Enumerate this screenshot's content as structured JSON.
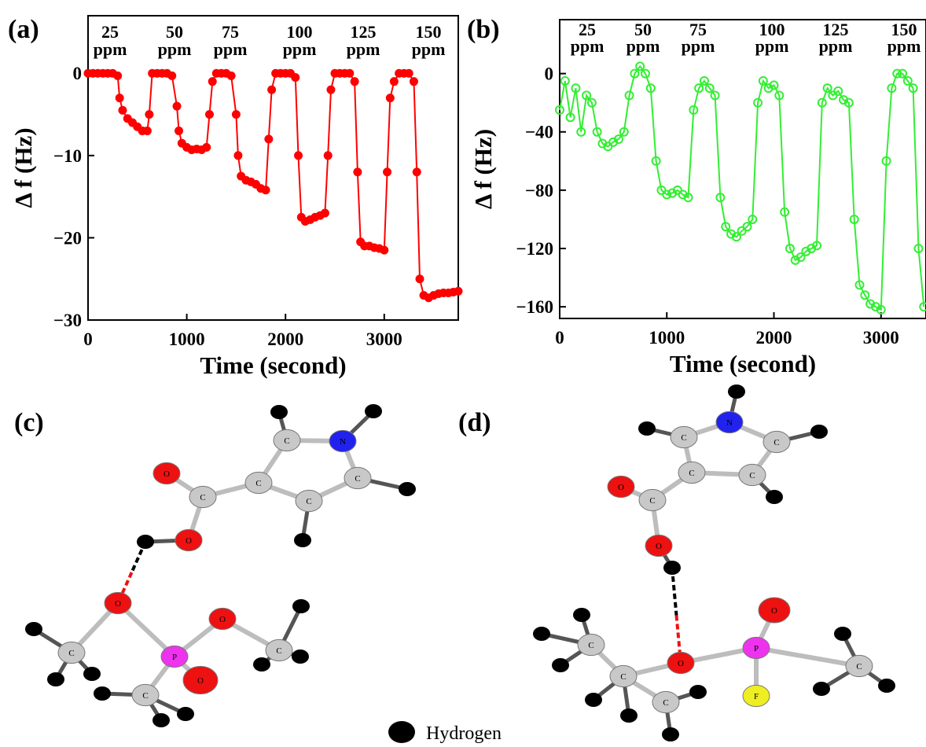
{
  "chart_data": [
    {
      "type": "line",
      "panel_label": "(a)",
      "xlabel": "Time (second)",
      "ylabel": "Δ f (Hz)",
      "annotations": [
        {
          "value": "25",
          "unit": "ppm"
        },
        {
          "value": "50",
          "unit": "ppm"
        },
        {
          "value": "75",
          "unit": "ppm"
        },
        {
          "value": "100",
          "unit": "ppm"
        },
        {
          "value": "125",
          "unit": "ppm"
        },
        {
          "value": "150",
          "unit": "ppm"
        }
      ],
      "x": [
        0,
        50,
        100,
        150,
        200,
        250,
        300,
        320,
        350,
        400,
        450,
        500,
        550,
        600,
        620,
        650,
        700,
        750,
        800,
        850,
        900,
        920,
        950,
        1000,
        1050,
        1100,
        1150,
        1200,
        1230,
        1260,
        1300,
        1350,
        1400,
        1450,
        1500,
        1520,
        1550,
        1600,
        1650,
        1700,
        1750,
        1800,
        1830,
        1860,
        1900,
        1950,
        2000,
        2050,
        2100,
        2130,
        2160,
        2200,
        2250,
        2300,
        2350,
        2400,
        2430,
        2460,
        2500,
        2550,
        2600,
        2650,
        2700,
        2730,
        2760,
        2800,
        2850,
        2900,
        2950,
        3000,
        3030,
        3060,
        3100,
        3150,
        3200,
        3250,
        3300,
        3330,
        3360,
        3400,
        3450,
        3500,
        3550,
        3600,
        3650,
        3700,
        3750
      ],
      "series": [
        {
          "color": "#ff0000",
          "marker": "filled-circle",
          "values": [
            0,
            0,
            0,
            0,
            0,
            0,
            -0.3,
            -3,
            -4.5,
            -5.5,
            -6,
            -6.5,
            -7,
            -7,
            -5,
            0,
            0,
            0,
            0,
            -0.3,
            -4,
            -7,
            -8.5,
            -9,
            -9.3,
            -9.2,
            -9.3,
            -9,
            -5,
            -1,
            0,
            0,
            0,
            -0.3,
            -5,
            -10,
            -12.5,
            -13,
            -13.2,
            -13.5,
            -14,
            -14.2,
            -8,
            -2,
            0,
            0,
            0,
            0,
            -0.5,
            -10,
            -17.5,
            -18,
            -17.8,
            -17.5,
            -17.3,
            -17,
            -10,
            -2,
            0,
            0,
            0,
            0,
            -1,
            -12,
            -20.5,
            -21,
            -21,
            -21.2,
            -21.3,
            -21.5,
            -12,
            -3,
            -1,
            0,
            0,
            0,
            -1,
            -12,
            -25,
            -27,
            -27.3,
            -27,
            -26.8,
            -26.7,
            -26.7,
            -26.6,
            -26.5
          ]
        }
      ],
      "xlim": [
        0,
        3750
      ],
      "ylim": [
        -30,
        7
      ],
      "xticks": [
        0,
        1000,
        2000,
        3000
      ],
      "yticks": [
        0,
        {
          "value": -10,
          "label": "−10"
        },
        {
          "value": -20,
          "label": "−20"
        },
        {
          "value": -30,
          "label": "−30"
        }
      ]
    },
    {
      "type": "line",
      "panel_label": "(b)",
      "xlabel": "Time (second)",
      "ylabel": "Δ f (Hz)",
      "annotations": [
        {
          "value": "25",
          "unit": "ppm"
        },
        {
          "value": "50",
          "unit": "ppm"
        },
        {
          "value": "75",
          "unit": "ppm"
        },
        {
          "value": "100",
          "unit": "ppm"
        },
        {
          "value": "125",
          "unit": "ppm"
        },
        {
          "value": "150",
          "unit": "ppm"
        }
      ],
      "x": [
        0,
        50,
        100,
        150,
        200,
        250,
        300,
        350,
        400,
        450,
        500,
        550,
        600,
        650,
        700,
        750,
        800,
        850,
        900,
        950,
        1000,
        1050,
        1100,
        1150,
        1200,
        1250,
        1300,
        1350,
        1400,
        1450,
        1500,
        1550,
        1600,
        1650,
        1700,
        1750,
        1800,
        1850,
        1900,
        1950,
        2000,
        2050,
        2100,
        2150,
        2200,
        2250,
        2300,
        2350,
        2400,
        2450,
        2500,
        2550,
        2600,
        2650,
        2700,
        2750,
        2800,
        2850,
        2900,
        2950,
        3000,
        3050,
        3100,
        3150,
        3200,
        3250,
        3300,
        3350,
        3400
      ],
      "series": [
        {
          "color": "#33ee33",
          "marker": "open-circle",
          "values": [
            -25,
            -5,
            -30,
            -10,
            -40,
            -15,
            -20,
            -40,
            -48,
            -50,
            -47,
            -45,
            -40,
            -15,
            0,
            5,
            0,
            -10,
            -60,
            -80,
            -83,
            -82,
            -80,
            -83,
            -85,
            -25,
            -10,
            -5,
            -10,
            -15,
            -85,
            -105,
            -110,
            -112,
            -108,
            -105,
            -100,
            -20,
            -5,
            -10,
            -8,
            -15,
            -95,
            -120,
            -128,
            -126,
            -122,
            -120,
            -118,
            -20,
            -10,
            -15,
            -12,
            -18,
            -20,
            -100,
            -145,
            -152,
            -158,
            -160,
            -162,
            -60,
            -10,
            0,
            0,
            -5,
            -10,
            -120,
            -160
          ]
        }
      ],
      "xlim": [
        0,
        3420
      ],
      "ylim": [
        -168,
        37
      ],
      "xticks": [
        0,
        1000,
        2000,
        3000
      ],
      "yticks": [
        0,
        {
          "value": -40,
          "label": "−40"
        },
        {
          "value": -80,
          "label": "−80"
        },
        {
          "value": -120,
          "label": "−120"
        },
        {
          "value": -160,
          "label": "−160"
        }
      ]
    }
  ],
  "diagrams": [
    {
      "label": "(c)",
      "atoms": [
        "C",
        "N",
        "C",
        "C",
        "C",
        "C",
        "O",
        "O",
        "O",
        "P",
        "O",
        "O",
        "C",
        "C",
        "C"
      ]
    },
    {
      "label": "(d)",
      "atoms": [
        "N",
        "C",
        "C",
        "C",
        "C",
        "C",
        "O",
        "O",
        "O",
        "P",
        "O",
        "F",
        "C",
        "C",
        "C",
        "C"
      ]
    }
  ],
  "legend": {
    "label": "Hydrogen"
  }
}
